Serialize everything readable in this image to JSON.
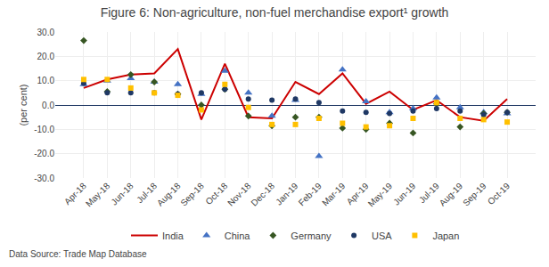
{
  "chart_data": {
    "type": "line",
    "title": "Figure 6: Non-agriculture, non-fuel merchandise export¹ growth",
    "y_label": "(per cent)",
    "annotations": [
      "Data Source: Trade Map Database"
    ],
    "categories": [
      "Apr-18",
      "May-18",
      "Jun-18",
      "Jul-18",
      "Aug-18",
      "Sep-18",
      "Oct-18",
      "Nov-18",
      "Dec-18",
      "Jan-19",
      "Feb-19",
      "Mar-19",
      "Apr-19",
      "May-19",
      "Jun-19",
      "Jul-19",
      "Aug-19",
      "Sep-19",
      "Oct-19"
    ],
    "series": [
      {
        "name": "India",
        "type": "line",
        "color": "#cc0000",
        "values": [
          7.0,
          10.5,
          12.5,
          13.0,
          23.0,
          -6.0,
          17.0,
          -5.0,
          -5.5,
          9.5,
          4.5,
          13.0,
          0.5,
          5.5,
          -2.0,
          2.0,
          -5.0,
          -6.5,
          2.5
        ]
      },
      {
        "name": "China",
        "type": "scatter",
        "marker": "triangle",
        "color": "#4472c4",
        "values": [
          8.5,
          10.0,
          11.0,
          9.5,
          8.5,
          4.5,
          14.0,
          5.0,
          -4.5,
          2.0,
          -21.0,
          14.5,
          1.5,
          -3.0,
          -1.5,
          3.0,
          -1.0,
          -3.0,
          -3.5
        ]
      },
      {
        "name": "Germany",
        "type": "scatter",
        "marker": "diamond",
        "color": "#375623",
        "values": [
          26.5,
          5.5,
          12.5,
          9.5,
          4.5,
          0.0,
          6.5,
          -4.5,
          -8.5,
          -5.0,
          -5.0,
          -9.5,
          -10.0,
          -7.5,
          -11.5,
          0.5,
          -9.0,
          -3.5,
          -3.0
        ]
      },
      {
        "name": "USA",
        "type": "scatter",
        "marker": "circle",
        "color": "#1f3864",
        "values": [
          9.0,
          5.0,
          5.0,
          5.0,
          4.5,
          5.0,
          6.5,
          2.5,
          2.0,
          2.5,
          1.0,
          -2.5,
          -3.0,
          -3.5,
          -2.5,
          -1.5,
          -2.5,
          -4.0,
          -3.0
        ]
      },
      {
        "name": "Japan",
        "type": "scatter",
        "marker": "square",
        "color": "#ffc000",
        "values": [
          10.5,
          10.5,
          7.0,
          5.0,
          4.0,
          -2.0,
          8.5,
          -1.0,
          -8.0,
          -8.0,
          -5.5,
          -7.5,
          -9.0,
          -8.5,
          -5.5,
          1.0,
          -5.5,
          -6.0,
          -7.0
        ]
      }
    ],
    "ylim": [
      -30.0,
      30.0
    ],
    "yticks": [
      {
        "value": -30.0,
        "label": "-30.0"
      },
      {
        "value": -20.0,
        "label": "-20.0"
      },
      {
        "value": -10.0,
        "label": "-10.0"
      },
      {
        "value": 0.0,
        "label": "0.0"
      },
      {
        "value": 10.0,
        "label": "10.0"
      },
      {
        "value": 20.0,
        "label": "20.0"
      },
      {
        "value": 30.0,
        "label": "30.0"
      }
    ],
    "grid": true,
    "legend": "bottom"
  }
}
